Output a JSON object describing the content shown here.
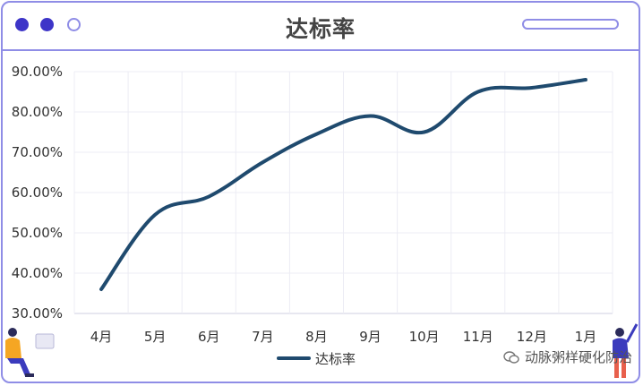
{
  "window": {
    "title": "达标率"
  },
  "chart_data": {
    "type": "line",
    "title": "达标率",
    "categories": [
      "4月",
      "5月",
      "6月",
      "7月",
      "8月",
      "9月",
      "10月",
      "11月",
      "12月",
      "1月"
    ],
    "series": [
      {
        "name": "达标率",
        "values": [
          36.0,
          54.5,
          59.0,
          67.5,
          74.5,
          79.0,
          75.0,
          85.0,
          86.0,
          88.0
        ]
      }
    ],
    "ylim": [
      30,
      90
    ],
    "yticks": [
      "30.00%",
      "40.00%",
      "50.00%",
      "60.00%",
      "70.00%",
      "80.00%",
      "90.00%"
    ],
    "xlabel": "",
    "ylabel": "",
    "grid": true,
    "legend": "bottom-center",
    "line_color": "#1f4a6e"
  },
  "watermark": {
    "text": "动脉粥样硬化防治"
  }
}
